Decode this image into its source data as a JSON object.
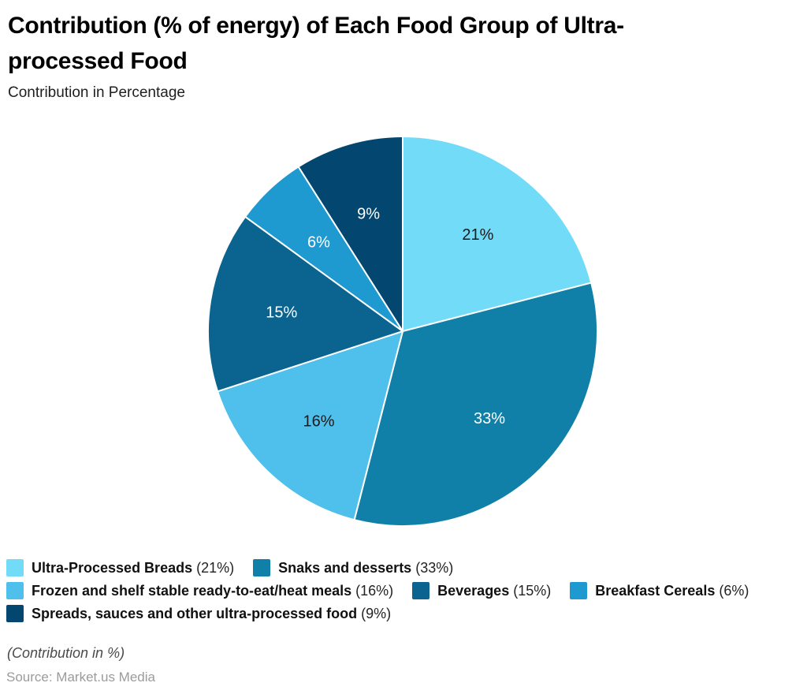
{
  "chart_data": {
    "type": "pie",
    "title": "Contribution (% of energy) of Each Food Group of Ultra-processed Food",
    "title_lines": [
      "Contribution (% of energy) of Each Food Group of Ultra-",
      "processed Food"
    ],
    "subtitle": "Contribution in Percentage",
    "unit_note": "(Contribution in %)",
    "source": "Source: Market.us Media",
    "start_angle_deg": 0,
    "direction": "clockwise",
    "legend_position": "bottom-left",
    "slices": [
      {
        "label": "Ultra-Processed Breads",
        "value": 21,
        "pct_label": "21%",
        "color": "#72DBF7",
        "label_color": "#1a1a1a"
      },
      {
        "label": "Snaks and desserts",
        "value": 33,
        "pct_label": "33%",
        "color": "#1180A8",
        "label_color": "#ffffff"
      },
      {
        "label": "Frozen and shelf stable ready-to-eat/heat meals",
        "value": 16,
        "pct_label": "16%",
        "color": "#4EC0EB",
        "label_color": "#1a1a1a"
      },
      {
        "label": "Beverages",
        "value": 15,
        "pct_label": "15%",
        "color": "#0B6490",
        "label_color": "#ffffff"
      },
      {
        "label": "Breakfast Cereals",
        "value": 6,
        "pct_label": "6%",
        "color": "#1E9AD0",
        "label_color": "#ffffff"
      },
      {
        "label": "Spreads, sauces and other ultra-processed food",
        "value": 9,
        "pct_label": "9%",
        "color": "#03466F",
        "label_color": "#ffffff"
      }
    ],
    "legend_rows": [
      [
        0,
        1
      ],
      [
        2,
        3,
        4
      ],
      [
        5
      ]
    ]
  }
}
